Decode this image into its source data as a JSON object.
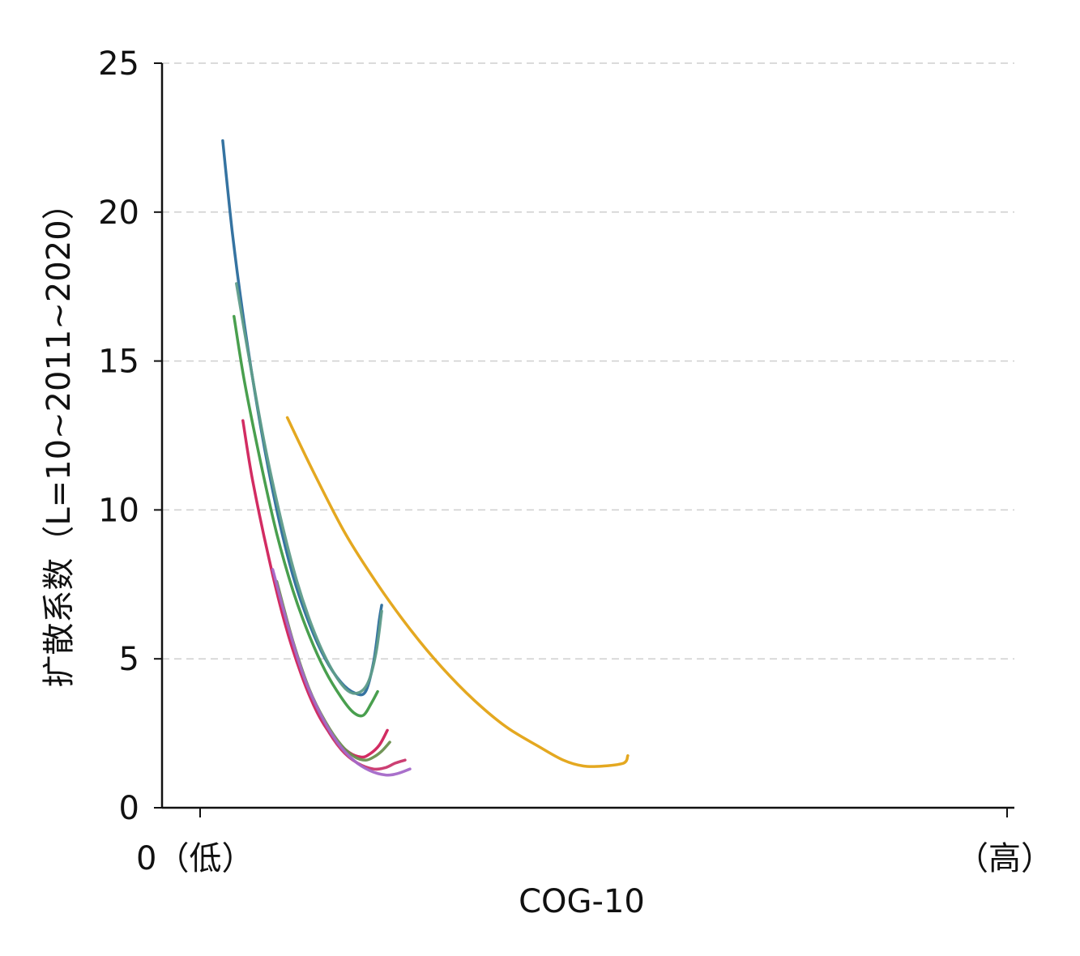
{
  "chart_data": {
    "type": "line",
    "title": "",
    "xlabel": "COG-10",
    "ylabel": "扩散系数（L=10~2011~2020）",
    "x_tick_labels": {
      "low": "0（低）",
      "high": "（高）"
    },
    "xlim": [
      0,
      10
    ],
    "ylim": [
      0,
      25
    ],
    "y_ticks": [
      "0",
      "5",
      "10",
      "15",
      "20",
      "25"
    ],
    "grid": "horizontal-dashed",
    "legend": "none",
    "series": [
      {
        "color": "#2a6b9c",
        "points": [
          [
            0.28,
            22.4
          ],
          [
            0.4,
            19.3
          ],
          [
            0.55,
            16.2
          ],
          [
            0.75,
            12.8
          ],
          [
            0.95,
            10.0
          ],
          [
            1.15,
            7.8
          ],
          [
            1.35,
            6.2
          ],
          [
            1.55,
            5.0
          ],
          [
            1.75,
            4.2
          ],
          [
            1.92,
            3.85
          ],
          [
            2.05,
            3.9
          ],
          [
            2.15,
            4.9
          ],
          [
            2.22,
            6.3
          ],
          [
            2.25,
            6.8
          ]
        ]
      },
      {
        "color": "#3f9a45",
        "points": [
          [
            0.42,
            16.5
          ],
          [
            0.55,
            14.3
          ],
          [
            0.75,
            11.6
          ],
          [
            0.95,
            9.2
          ],
          [
            1.15,
            7.3
          ],
          [
            1.35,
            5.8
          ],
          [
            1.55,
            4.6
          ],
          [
            1.75,
            3.7
          ],
          [
            1.9,
            3.2
          ],
          [
            2.02,
            3.1
          ],
          [
            2.12,
            3.5
          ],
          [
            2.2,
            3.9
          ]
        ]
      },
      {
        "color": "#d0215a",
        "points": [
          [
            0.53,
            13.0
          ],
          [
            0.65,
            11.0
          ],
          [
            0.85,
            8.4
          ],
          [
            1.05,
            6.2
          ],
          [
            1.25,
            4.5
          ],
          [
            1.45,
            3.2
          ],
          [
            1.65,
            2.35
          ],
          [
            1.85,
            1.85
          ],
          [
            2.0,
            1.7
          ],
          [
            2.1,
            1.8
          ],
          [
            2.22,
            2.1
          ],
          [
            2.32,
            2.6
          ]
        ]
      },
      {
        "color": "#c9356b",
        "points": [
          [
            0.95,
            7.5
          ],
          [
            1.15,
            5.5
          ],
          [
            1.35,
            3.9
          ],
          [
            1.55,
            2.75
          ],
          [
            1.75,
            1.95
          ],
          [
            1.95,
            1.5
          ],
          [
            2.15,
            1.3
          ],
          [
            2.3,
            1.35
          ],
          [
            2.42,
            1.5
          ],
          [
            2.54,
            1.6
          ]
        ]
      },
      {
        "color": "#6a8f4f",
        "points": [
          [
            0.95,
            7.6
          ],
          [
            1.15,
            5.6
          ],
          [
            1.35,
            4.0
          ],
          [
            1.55,
            2.9
          ],
          [
            1.75,
            2.1
          ],
          [
            1.92,
            1.7
          ],
          [
            2.05,
            1.6
          ],
          [
            2.15,
            1.7
          ],
          [
            2.25,
            1.9
          ],
          [
            2.35,
            2.2
          ]
        ]
      },
      {
        "color": "#a468c8",
        "points": [
          [
            0.9,
            8.0
          ],
          [
            1.1,
            6.0
          ],
          [
            1.3,
            4.3
          ],
          [
            1.5,
            3.1
          ],
          [
            1.7,
            2.2
          ],
          [
            1.9,
            1.6
          ],
          [
            2.1,
            1.25
          ],
          [
            2.3,
            1.1
          ],
          [
            2.45,
            1.15
          ],
          [
            2.6,
            1.3
          ]
        ]
      },
      {
        "color": "#5f9c8a",
        "points": [
          [
            0.45,
            17.6
          ],
          [
            0.6,
            15.2
          ],
          [
            0.8,
            12.2
          ],
          [
            1.0,
            9.7
          ],
          [
            1.2,
            7.6
          ],
          [
            1.4,
            6.0
          ],
          [
            1.6,
            4.8
          ],
          [
            1.8,
            4.0
          ],
          [
            1.95,
            3.85
          ],
          [
            2.08,
            4.2
          ],
          [
            2.18,
            5.2
          ],
          [
            2.25,
            6.6
          ]
        ]
      },
      {
        "color": "#e3a314",
        "points": [
          [
            1.08,
            13.1
          ],
          [
            1.4,
            11.3
          ],
          [
            1.8,
            9.2
          ],
          [
            2.2,
            7.5
          ],
          [
            2.6,
            6.0
          ],
          [
            3.0,
            4.7
          ],
          [
            3.4,
            3.6
          ],
          [
            3.8,
            2.7
          ],
          [
            4.2,
            2.05
          ],
          [
            4.5,
            1.6
          ],
          [
            4.75,
            1.4
          ],
          [
            5.0,
            1.4
          ],
          [
            5.25,
            1.5
          ],
          [
            5.3,
            1.75
          ]
        ]
      }
    ]
  }
}
